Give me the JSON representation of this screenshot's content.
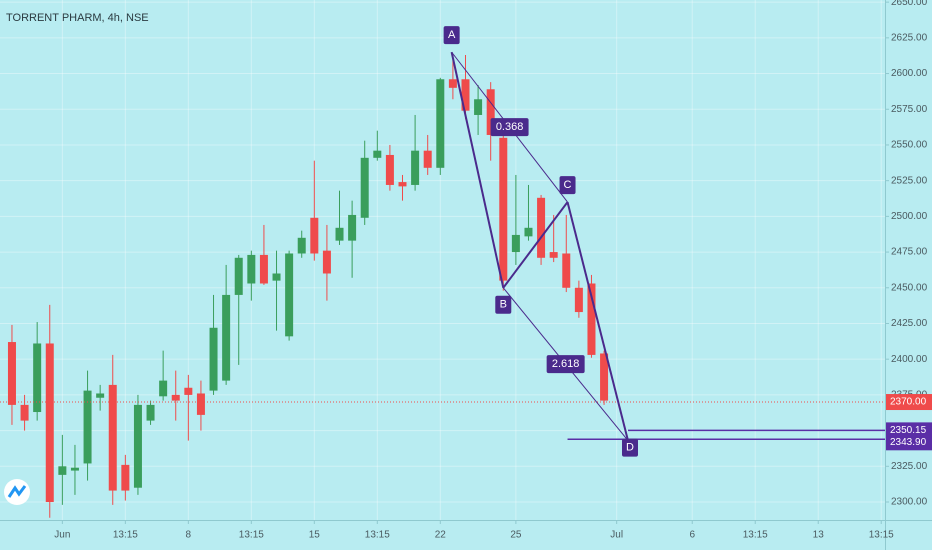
{
  "chart_data": {
    "type": "candlestick",
    "title": "TORRENT PHARM, 4h, NSE",
    "x": [
      0,
      1,
      2,
      3,
      4,
      5,
      6,
      7,
      8,
      9,
      10,
      11,
      12,
      13,
      14,
      15,
      16,
      17,
      18,
      19,
      20,
      21,
      22,
      23,
      24,
      25,
      26,
      27,
      28,
      29,
      30,
      31,
      32,
      33,
      34,
      35,
      36,
      37,
      38,
      39,
      40,
      41,
      42,
      43,
      44,
      45,
      46,
      47
    ],
    "open": [
      2412,
      2368,
      2363,
      2411,
      2319,
      2322,
      2327,
      2373,
      2382,
      2326,
      2310,
      2357,
      2374,
      2375,
      2380,
      2376,
      2378,
      2385,
      2445,
      2453,
      2473,
      2455,
      2416,
      2474,
      2499,
      2476,
      2483,
      2483,
      2499,
      2541,
      2543,
      2524,
      2522,
      2546,
      2534,
      2596,
      2596,
      2571,
      2589,
      2555,
      2475,
      2486,
      2513,
      2475,
      2474,
      2450,
      2453,
      2404
    ],
    "high": [
      2424,
      2375,
      2426,
      2438,
      2347,
      2340,
      2392,
      2382,
      2403,
      2333,
      2375,
      2371,
      2406,
      2392,
      2389,
      2385,
      2445,
      2466,
      2473,
      2476,
      2494,
      2476,
      2476,
      2490,
      2539,
      2494,
      2518,
      2511,
      2553,
      2560,
      2550,
      2529,
      2571,
      2557,
      2597,
      2613,
      2613,
      2592,
      2594,
      2560,
      2529,
      2522,
      2515,
      2501,
      2501,
      2455,
      2459,
      2406
    ],
    "low": [
      2354,
      2350,
      2357,
      2289,
      2298,
      2305,
      2315,
      2364,
      2298,
      2301,
      2305,
      2354,
      2371,
      2357,
      2343,
      2350,
      2375,
      2382,
      2396,
      2441,
      2452,
      2420,
      2413,
      2471,
      2469,
      2441,
      2480,
      2457,
      2494,
      2539,
      2518,
      2511,
      2518,
      2529,
      2529,
      2582,
      2568,
      2557,
      2539,
      2448,
      2466,
      2483,
      2466,
      2468,
      2447,
      2429,
      2401,
      2368
    ],
    "close": [
      2368,
      2357,
      2411,
      2300,
      2325,
      2324,
      2378,
      2376,
      2308,
      2308,
      2368,
      2368,
      2385,
      2371,
      2375,
      2361,
      2422,
      2445,
      2471,
      2473,
      2453,
      2460,
      2474,
      2485,
      2474,
      2460,
      2492,
      2501,
      2541,
      2546,
      2522,
      2521,
      2546,
      2534,
      2596,
      2590,
      2574,
      2582,
      2557,
      2455,
      2487,
      2492,
      2471,
      2471,
      2450,
      2433,
      2403,
      2371
    ],
    "up_color": "#3a9e5c",
    "down_color": "#ef4b4b",
    "xlim": [
      -0.95,
      69.3
    ],
    "xticks": [
      {
        "value": 4,
        "label": "Jun"
      },
      {
        "value": 9,
        "label": "13:15"
      },
      {
        "value": 14,
        "label": "8"
      },
      {
        "value": 19,
        "label": "13:15"
      },
      {
        "value": 24,
        "label": "15"
      },
      {
        "value": 29,
        "label": "13:15"
      },
      {
        "value": 34,
        "label": "22"
      },
      {
        "value": 40,
        "label": "25"
      },
      {
        "value": 48,
        "label": "Jul"
      },
      {
        "value": 54,
        "label": "6"
      },
      {
        "value": 59,
        "label": "13:15"
      },
      {
        "value": 64,
        "label": "13"
      },
      {
        "value": 69,
        "label": "13:15"
      }
    ],
    "ylim": [
      2287.4,
      2651.5
    ],
    "yticks": [
      {
        "value": 2300,
        "label": "2300.00"
      },
      {
        "value": 2325,
        "label": "2325.00"
      },
      {
        "value": 2350,
        "label": "2350.00"
      },
      {
        "value": 2375,
        "label": "2375.00"
      },
      {
        "value": 2400,
        "label": "2400.00"
      },
      {
        "value": 2425,
        "label": "2425.00"
      },
      {
        "value": 2450,
        "label": "2450.00"
      },
      {
        "value": 2475,
        "label": "2475.00"
      },
      {
        "value": 2500,
        "label": "2500.00"
      },
      {
        "value": 2525,
        "label": "2525.00"
      },
      {
        "value": 2550,
        "label": "2550.00"
      },
      {
        "value": 2575,
        "label": "2575.00"
      },
      {
        "value": 2600,
        "label": "2600.00"
      },
      {
        "value": 2625,
        "label": "2625.00"
      },
      {
        "value": 2650,
        "label": "2650.00"
      }
    ],
    "grid": true,
    "pattern": {
      "color": "#4a2a8c",
      "points": [
        {
          "label": "A",
          "x": 34.9,
          "y": 2615
        },
        {
          "label": "B",
          "x": 39,
          "y": 2450
        },
        {
          "label": "C",
          "x": 44.1,
          "y": 2510
        },
        {
          "label": "D",
          "x": 48.9,
          "y": 2343
        }
      ],
      "ratios": [
        {
          "label": "0.368"
        },
        {
          "label": "2.618"
        }
      ]
    },
    "price_lines": [
      {
        "value": 2370,
        "label": "2370.00",
        "color": "#ef4b4b"
      },
      {
        "value": 2350.15,
        "label": "2350.15",
        "color": "#5a2ea6"
      },
      {
        "value": 2343.9,
        "label": "2343.90",
        "color": "#5a2ea6"
      }
    ]
  }
}
